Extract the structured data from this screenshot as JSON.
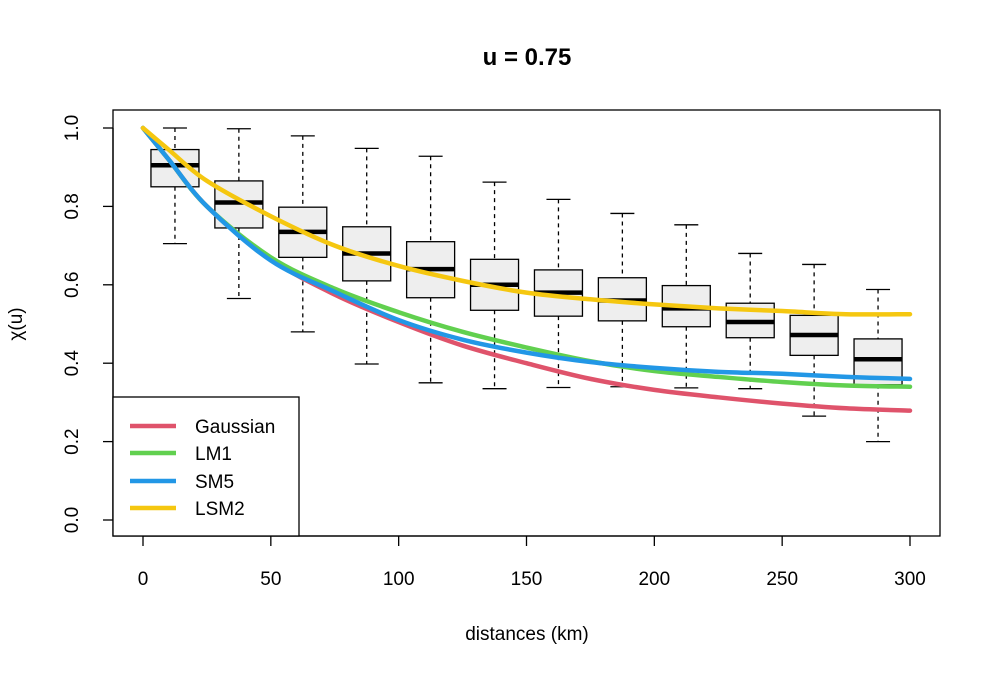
{
  "chart_data": {
    "type": "boxplot+line",
    "title": "u = 0.75",
    "xlabel": "distances (km)",
    "ylabel": "χ(u)",
    "xlim": [
      0,
      300
    ],
    "ylim": [
      0,
      1
    ],
    "x_ticks": [
      0,
      50,
      100,
      150,
      200,
      250,
      300
    ],
    "y_ticks": [
      0.0,
      0.2,
      0.4,
      0.6,
      0.8,
      1.0
    ],
    "y_tick_labels": [
      "0.0",
      "0.2",
      "0.4",
      "0.6",
      "0.8",
      "1.0"
    ],
    "boxplots": [
      {
        "x": 12.5,
        "whisker_low": 0.705,
        "q1": 0.85,
        "median": 0.905,
        "q3": 0.945,
        "whisker_high": 1.0
      },
      {
        "x": 37.5,
        "whisker_low": 0.565,
        "q1": 0.745,
        "median": 0.81,
        "q3": 0.865,
        "whisker_high": 0.998
      },
      {
        "x": 62.5,
        "whisker_low": 0.48,
        "q1": 0.67,
        "median": 0.735,
        "q3": 0.798,
        "whisker_high": 0.98
      },
      {
        "x": 87.5,
        "whisker_low": 0.398,
        "q1": 0.61,
        "median": 0.68,
        "q3": 0.748,
        "whisker_high": 0.948
      },
      {
        "x": 112.5,
        "whisker_low": 0.35,
        "q1": 0.567,
        "median": 0.64,
        "q3": 0.71,
        "whisker_high": 0.928
      },
      {
        "x": 137.5,
        "whisker_low": 0.335,
        "q1": 0.535,
        "median": 0.6,
        "q3": 0.665,
        "whisker_high": 0.862
      },
      {
        "x": 162.5,
        "whisker_low": 0.338,
        "q1": 0.52,
        "median": 0.58,
        "q3": 0.638,
        "whisker_high": 0.818
      },
      {
        "x": 187.5,
        "whisker_low": 0.34,
        "q1": 0.508,
        "median": 0.56,
        "q3": 0.618,
        "whisker_high": 0.782
      },
      {
        "x": 212.5,
        "whisker_low": 0.337,
        "q1": 0.493,
        "median": 0.54,
        "q3": 0.598,
        "whisker_high": 0.753
      },
      {
        "x": 237.5,
        "whisker_low": 0.335,
        "q1": 0.465,
        "median": 0.505,
        "q3": 0.553,
        "whisker_high": 0.68
      },
      {
        "x": 262.5,
        "whisker_low": 0.265,
        "q1": 0.42,
        "median": 0.472,
        "q3": 0.522,
        "whisker_high": 0.652
      },
      {
        "x": 287.5,
        "whisker_low": 0.2,
        "q1": 0.345,
        "median": 0.41,
        "q3": 0.462,
        "whisker_high": 0.588
      }
    ],
    "series": [
      {
        "name": "Gaussian",
        "color": "#DF536B",
        "x": [
          0,
          10,
          25,
          50,
          75,
          100,
          125,
          150,
          175,
          200,
          225,
          250,
          275,
          300
        ],
        "y": [
          1.0,
          0.92,
          0.8,
          0.665,
          0.575,
          0.505,
          0.445,
          0.4,
          0.36,
          0.332,
          0.313,
          0.297,
          0.285,
          0.279
        ]
      },
      {
        "name": "LM1",
        "color": "#61D04F",
        "x": [
          0,
          10,
          25,
          50,
          75,
          100,
          125,
          150,
          175,
          200,
          225,
          250,
          275,
          300
        ],
        "y": [
          1.0,
          0.92,
          0.8,
          0.67,
          0.59,
          0.53,
          0.48,
          0.44,
          0.405,
          0.38,
          0.365,
          0.352,
          0.343,
          0.34
        ]
      },
      {
        "name": "SM5",
        "color": "#2297E6",
        "x": [
          0,
          10,
          25,
          50,
          75,
          100,
          125,
          150,
          175,
          200,
          225,
          250,
          275,
          300
        ],
        "y": [
          1.0,
          0.92,
          0.8,
          0.662,
          0.582,
          0.51,
          0.46,
          0.427,
          0.403,
          0.388,
          0.378,
          0.373,
          0.365,
          0.36
        ]
      },
      {
        "name": "LSM2",
        "color": "#F5C710",
        "x": [
          0,
          10,
          25,
          50,
          75,
          100,
          125,
          150,
          175,
          200,
          225,
          250,
          275,
          300
        ],
        "y": [
          1.0,
          0.945,
          0.865,
          0.775,
          0.7,
          0.648,
          0.61,
          0.58,
          0.563,
          0.55,
          0.54,
          0.533,
          0.525,
          0.525
        ]
      }
    ],
    "legend": {
      "position": "bottom-left",
      "entries": [
        "Gaussian",
        "LM1",
        "SM5",
        "LSM2"
      ]
    }
  }
}
